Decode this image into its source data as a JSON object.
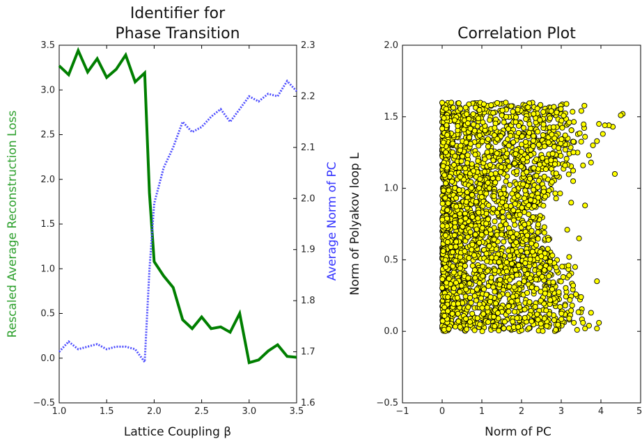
{
  "chart_data": [
    {
      "type": "line",
      "title": [
        "Identifier for",
        "Phase Transition"
      ],
      "xlabel": "Lattice Coupling β",
      "ylabel": "Rescaled Average Reconstruction Loss",
      "y2label": "Average Norm of PC",
      "xlim": [
        1.0,
        3.5
      ],
      "ylim": [
        -0.5,
        3.5
      ],
      "y2lim": [
        1.6,
        2.3
      ],
      "xticks": [
        "1.0",
        "1.5",
        "2.0",
        "2.5",
        "3.0",
        "3.5"
      ],
      "yticks": [
        "−0.5",
        "0.0",
        "0.5",
        "1.0",
        "1.5",
        "2.0",
        "2.5",
        "3.0",
        "3.5"
      ],
      "y2ticks": [
        "1.6",
        "1.7",
        "1.8",
        "1.9",
        "2.0",
        "2.1",
        "2.2",
        "2.3"
      ],
      "colors": {
        "loss": "#007f00",
        "norm": "#4b4bff",
        "ylabel": "#2ca02c",
        "y2label": "#3333ff"
      },
      "series": [
        {
          "axis": "left",
          "style": "solid",
          "color": "#007f00",
          "x": [
            1.0,
            1.1,
            1.2,
            1.3,
            1.4,
            1.5,
            1.6,
            1.7,
            1.8,
            1.9,
            1.95,
            2.0,
            2.1,
            2.2,
            2.3,
            2.4,
            2.5,
            2.6,
            2.7,
            2.8,
            2.9,
            3.0,
            3.1,
            3.2,
            3.3,
            3.4,
            3.5
          ],
          "values": [
            3.27,
            3.17,
            3.44,
            3.2,
            3.35,
            3.14,
            3.23,
            3.39,
            3.09,
            3.19,
            1.85,
            1.08,
            0.92,
            0.79,
            0.43,
            0.33,
            0.46,
            0.33,
            0.35,
            0.29,
            0.5,
            -0.05,
            -0.02,
            0.08,
            0.15,
            0.02,
            0.01
          ]
        },
        {
          "axis": "right",
          "style": "dotted",
          "color": "#4b4bff",
          "x": [
            1.0,
            1.1,
            1.2,
            1.3,
            1.4,
            1.5,
            1.6,
            1.7,
            1.8,
            1.9,
            1.95,
            2.0,
            2.1,
            2.2,
            2.3,
            2.35,
            2.4,
            2.5,
            2.6,
            2.7,
            2.8,
            2.9,
            3.0,
            3.1,
            3.2,
            3.3,
            3.4,
            3.5
          ],
          "values": [
            1.7,
            1.72,
            1.705,
            1.71,
            1.715,
            1.705,
            1.71,
            1.71,
            1.705,
            1.68,
            1.86,
            1.99,
            2.06,
            2.1,
            2.15,
            2.14,
            2.13,
            2.14,
            2.16,
            2.175,
            2.15,
            2.175,
            2.2,
            2.19,
            2.205,
            2.2,
            2.23,
            2.21
          ]
        }
      ]
    },
    {
      "type": "scatter",
      "title": "Correlation Plot",
      "xlabel": "Norm of PC",
      "ylabel": "Norm of Polyakov loop L",
      "xlim": [
        -1,
        5
      ],
      "ylim": [
        -0.5,
        2.0
      ],
      "xticks": [
        "−1",
        "0",
        "1",
        "2",
        "3",
        "4",
        "5"
      ],
      "yticks": [
        "−0.5",
        "0.0",
        "0.5",
        "1.0",
        "1.5",
        "2.0"
      ],
      "colors": {
        "marker_fill": "#ffff00",
        "marker_edge": "#000000"
      },
      "points": [
        [
          4.55,
          1.52
        ],
        [
          4.5,
          1.51
        ],
        [
          4.3,
          1.43
        ],
        [
          4.2,
          1.44
        ],
        [
          4.1,
          1.44
        ],
        [
          4.05,
          1.38
        ],
        [
          3.95,
          1.45
        ],
        [
          4.35,
          1.1
        ],
        [
          3.9,
          0.35
        ],
        [
          3.95,
          0.06
        ],
        [
          3.9,
          0.02
        ],
        [
          3.7,
          0.04
        ],
        [
          3.75,
          0.13
        ],
        [
          3.8,
          1.3
        ],
        [
          3.9,
          1.33
        ],
        [
          3.7,
          1.23
        ],
        [
          3.6,
          0.88
        ],
        [
          3.45,
          0.65
        ],
        [
          3.55,
          1.16
        ],
        [
          3.6,
          1.36
        ],
        [
          3.75,
          1.18
        ],
        [
          3.6,
          0.02
        ],
        [
          3.55,
          0.06
        ],
        [
          3.4,
          0.01
        ],
        [
          3.3,
          0.32
        ],
        [
          3.35,
          0.45
        ],
        [
          3.2,
          0.52
        ],
        [
          3.25,
          0.9
        ],
        [
          3.15,
          0.71
        ],
        [
          3.3,
          1.05
        ],
        [
          3.1,
          1.37
        ],
        [
          3.2,
          1.46
        ],
        [
          3.05,
          0.38
        ],
        [
          3.1,
          0.18
        ],
        [
          3.2,
          0.09
        ],
        [
          3.5,
          0.24
        ]
      ]
    }
  ]
}
